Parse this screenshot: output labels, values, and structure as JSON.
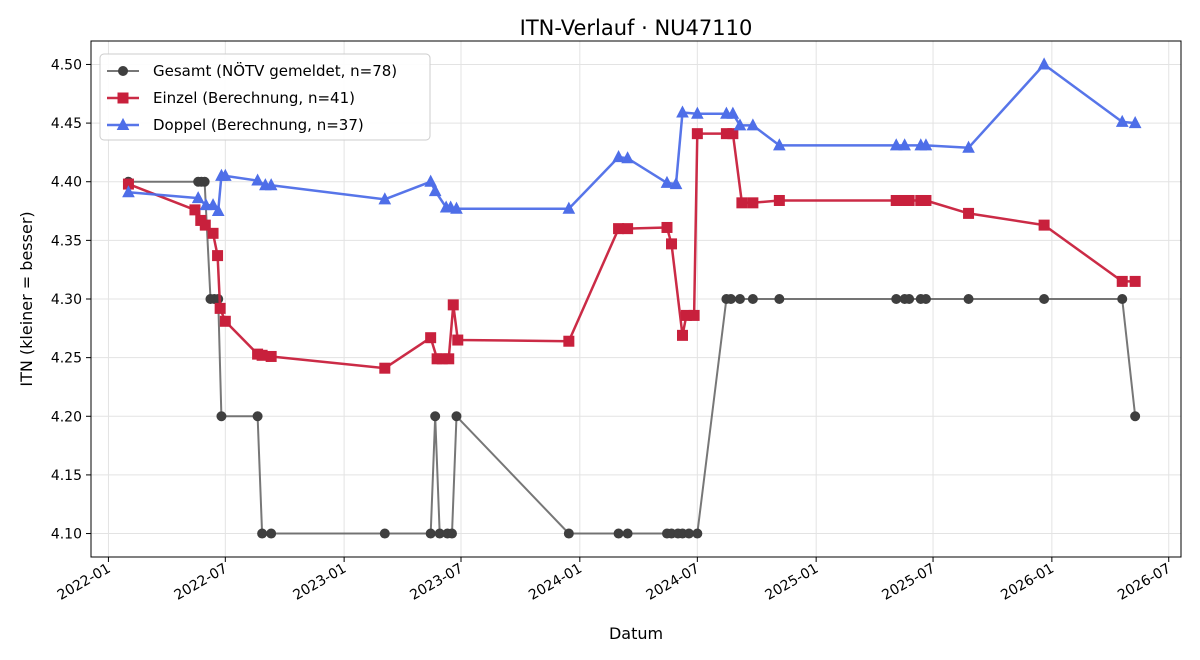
{
  "chart_data": {
    "type": "line",
    "title": "ITN-Verlauf · NU47110",
    "xlabel": "Datum",
    "ylabel": "ITN  (kleiner = besser)",
    "x_ticks": [
      "2022-01",
      "2022-07",
      "2023-01",
      "2023-07",
      "2024-01",
      "2024-07",
      "2025-01",
      "2025-07",
      "2026-01",
      "2026-07"
    ],
    "y_ticks": [
      "4.10",
      "4.15",
      "4.20",
      "4.25",
      "4.30",
      "4.35",
      "4.40",
      "4.45",
      "4.50"
    ],
    "xlim": [
      "2021-12-05",
      "2026-07-20"
    ],
    "ylim": [
      4.08,
      4.52
    ],
    "grid": true,
    "legend_position": "top-left",
    "series": [
      {
        "name": "Gesamt (NÖTV gemeldet, n=78)",
        "color": "#555555",
        "marker": "circle",
        "points": [
          [
            "2022-02-01",
            4.4
          ],
          [
            "2022-05-20",
            4.4
          ],
          [
            "2022-05-25",
            4.4
          ],
          [
            "2022-05-30",
            4.4
          ],
          [
            "2022-06-08",
            4.3
          ],
          [
            "2022-06-14",
            4.3
          ],
          [
            "2022-06-20",
            4.3
          ],
          [
            "2022-06-25",
            4.2
          ],
          [
            "2022-08-20",
            4.2
          ],
          [
            "2022-08-27",
            4.1
          ],
          [
            "2022-09-10",
            4.1
          ],
          [
            "2023-03-05",
            4.1
          ],
          [
            "2023-05-15",
            4.1
          ],
          [
            "2023-05-22",
            4.2
          ],
          [
            "2023-05-29",
            4.1
          ],
          [
            "2023-06-10",
            4.1
          ],
          [
            "2023-06-17",
            4.1
          ],
          [
            "2023-06-24",
            4.2
          ],
          [
            "2023-12-15",
            4.1
          ],
          [
            "2024-03-01",
            4.1
          ],
          [
            "2024-03-15",
            4.1
          ],
          [
            "2024-05-15",
            4.1
          ],
          [
            "2024-05-22",
            4.1
          ],
          [
            "2024-06-01",
            4.1
          ],
          [
            "2024-06-08",
            4.1
          ],
          [
            "2024-06-18",
            4.1
          ],
          [
            "2024-07-01",
            4.1
          ],
          [
            "2024-08-15",
            4.3
          ],
          [
            "2024-08-22",
            4.3
          ],
          [
            "2024-09-05",
            4.3
          ],
          [
            "2024-09-25",
            4.3
          ],
          [
            "2024-11-05",
            4.3
          ],
          [
            "2025-05-05",
            4.3
          ],
          [
            "2025-05-18",
            4.3
          ],
          [
            "2025-05-25",
            4.3
          ],
          [
            "2025-06-12",
            4.3
          ],
          [
            "2025-06-20",
            4.3
          ],
          [
            "2025-08-25",
            4.3
          ],
          [
            "2025-12-20",
            4.3
          ],
          [
            "2026-04-20",
            4.3
          ],
          [
            "2026-05-10",
            4.2
          ]
        ]
      },
      {
        "name": "Einzel (Berechnung, n=41)",
        "color": "#c8203c",
        "marker": "square",
        "points": [
          [
            "2022-02-01",
            4.398
          ],
          [
            "2022-05-15",
            4.376
          ],
          [
            "2022-05-24",
            4.367
          ],
          [
            "2022-05-31",
            4.363
          ],
          [
            "2022-06-12",
            4.356
          ],
          [
            "2022-06-19",
            4.337
          ],
          [
            "2022-06-23",
            4.292
          ],
          [
            "2022-07-01",
            4.281
          ],
          [
            "2022-08-20",
            4.253
          ],
          [
            "2022-08-27",
            4.252
          ],
          [
            "2022-09-10",
            4.251
          ],
          [
            "2023-03-05",
            4.241
          ],
          [
            "2023-05-15",
            4.267
          ],
          [
            "2023-05-25",
            4.249
          ],
          [
            "2023-06-02",
            4.249
          ],
          [
            "2023-06-12",
            4.249
          ],
          [
            "2023-06-19",
            4.295
          ],
          [
            "2023-06-26",
            4.265
          ],
          [
            "2023-12-15",
            4.264
          ],
          [
            "2024-03-01",
            4.36
          ],
          [
            "2024-03-15",
            4.36
          ],
          [
            "2024-05-15",
            4.361
          ],
          [
            "2024-05-22",
            4.347
          ],
          [
            "2024-06-08",
            4.269
          ],
          [
            "2024-06-14",
            4.286
          ],
          [
            "2024-06-26",
            4.286
          ],
          [
            "2024-07-01",
            4.441
          ],
          [
            "2024-08-15",
            4.441
          ],
          [
            "2024-08-25",
            4.441
          ],
          [
            "2024-09-08",
            4.382
          ],
          [
            "2024-09-25",
            4.382
          ],
          [
            "2024-11-05",
            4.384
          ],
          [
            "2025-05-05",
            4.384
          ],
          [
            "2025-05-18",
            4.384
          ],
          [
            "2025-05-25",
            4.384
          ],
          [
            "2025-06-12",
            4.384
          ],
          [
            "2025-06-20",
            4.384
          ],
          [
            "2025-08-25",
            4.373
          ],
          [
            "2025-12-20",
            4.363
          ],
          [
            "2026-04-20",
            4.315
          ],
          [
            "2026-05-10",
            4.315
          ]
        ]
      },
      {
        "name": "Doppel (Berechnung, n=37)",
        "color": "#4e6ee8",
        "marker": "triangle",
        "points": [
          [
            "2022-02-01",
            4.391
          ],
          [
            "2022-05-20",
            4.386
          ],
          [
            "2022-06-01",
            4.38
          ],
          [
            "2022-06-12",
            4.38
          ],
          [
            "2022-06-20",
            4.375
          ],
          [
            "2022-06-25",
            4.405
          ],
          [
            "2022-07-01",
            4.405
          ],
          [
            "2022-08-20",
            4.401
          ],
          [
            "2022-09-01",
            4.397
          ],
          [
            "2022-09-10",
            4.397
          ],
          [
            "2023-03-05",
            4.385
          ],
          [
            "2023-05-15",
            4.4
          ],
          [
            "2023-05-22",
            4.392
          ],
          [
            "2023-06-08",
            4.378
          ],
          [
            "2023-06-15",
            4.378
          ],
          [
            "2023-06-24",
            4.377
          ],
          [
            "2023-12-15",
            4.377
          ],
          [
            "2024-03-01",
            4.421
          ],
          [
            "2024-03-15",
            4.42
          ],
          [
            "2024-05-15",
            4.399
          ],
          [
            "2024-05-29",
            4.398
          ],
          [
            "2024-06-08",
            4.459
          ],
          [
            "2024-07-01",
            4.458
          ],
          [
            "2024-08-15",
            4.458
          ],
          [
            "2024-08-25",
            4.458
          ],
          [
            "2024-09-05",
            4.448
          ],
          [
            "2024-09-25",
            4.448
          ],
          [
            "2024-11-05",
            4.431
          ],
          [
            "2025-05-05",
            4.431
          ],
          [
            "2025-05-18",
            4.431
          ],
          [
            "2025-06-12",
            4.431
          ],
          [
            "2025-06-20",
            4.431
          ],
          [
            "2025-08-25",
            4.429
          ],
          [
            "2025-12-20",
            4.5
          ],
          [
            "2026-04-20",
            4.451
          ],
          [
            "2026-05-10",
            4.45
          ]
        ]
      }
    ]
  }
}
